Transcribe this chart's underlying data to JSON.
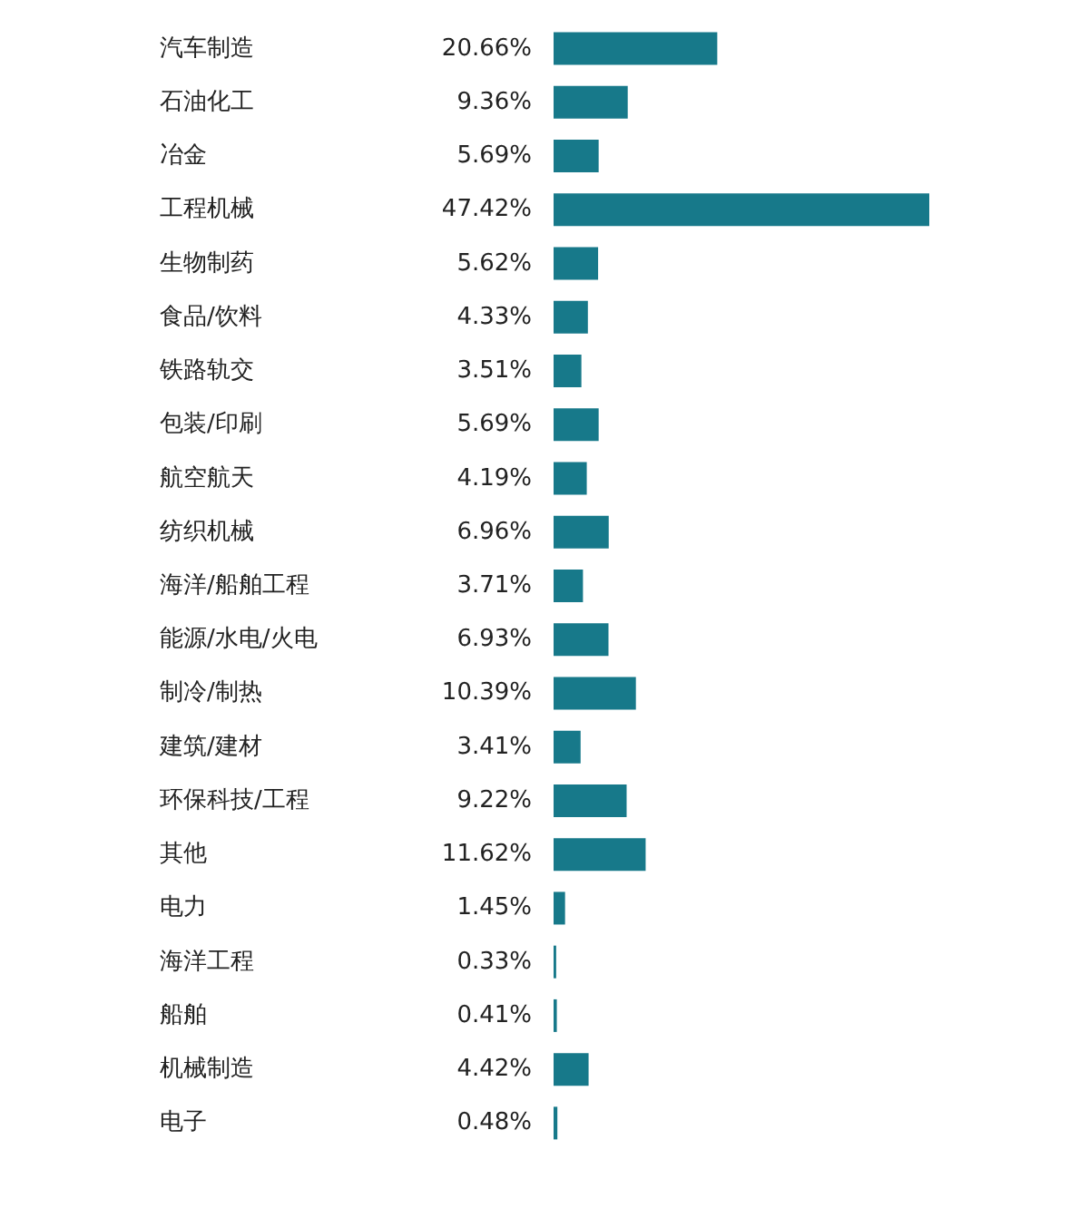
{
  "chart_data": {
    "type": "bar",
    "orientation": "horizontal",
    "color": "#17798a",
    "categories": [
      "汽车制造",
      "石油化工",
      "冶金",
      "工程机械",
      "生物制药",
      "食品/饮料",
      "铁路轨交",
      "包装/印刷",
      "航空航天",
      "纺织机械",
      "海洋/船舶工程",
      "能源/水电/火电",
      "制冷/制热",
      "建筑/建材",
      "环保科技/工程",
      "其他",
      "电力",
      "海洋工程",
      "船舶",
      "机械制造",
      "电子"
    ],
    "values": [
      20.66,
      9.36,
      5.69,
      47.42,
      5.62,
      4.33,
      3.51,
      5.69,
      4.19,
      6.96,
      3.71,
      6.93,
      10.39,
      3.41,
      9.22,
      11.62,
      1.45,
      0.33,
      0.41,
      4.42,
      0.48
    ],
    "value_labels": [
      "20.66%",
      "9.36%",
      "5.69%",
      "47.42%",
      "5.62%",
      "4.33%",
      "3.51%",
      "5.69%",
      "4.19%",
      "6.96%",
      "3.71%",
      "6.93%",
      "10.39%",
      "3.41%",
      "9.22%",
      "11.62%",
      "1.45%",
      "0.33%",
      "0.41%",
      "4.42%",
      "0.48%"
    ]
  }
}
